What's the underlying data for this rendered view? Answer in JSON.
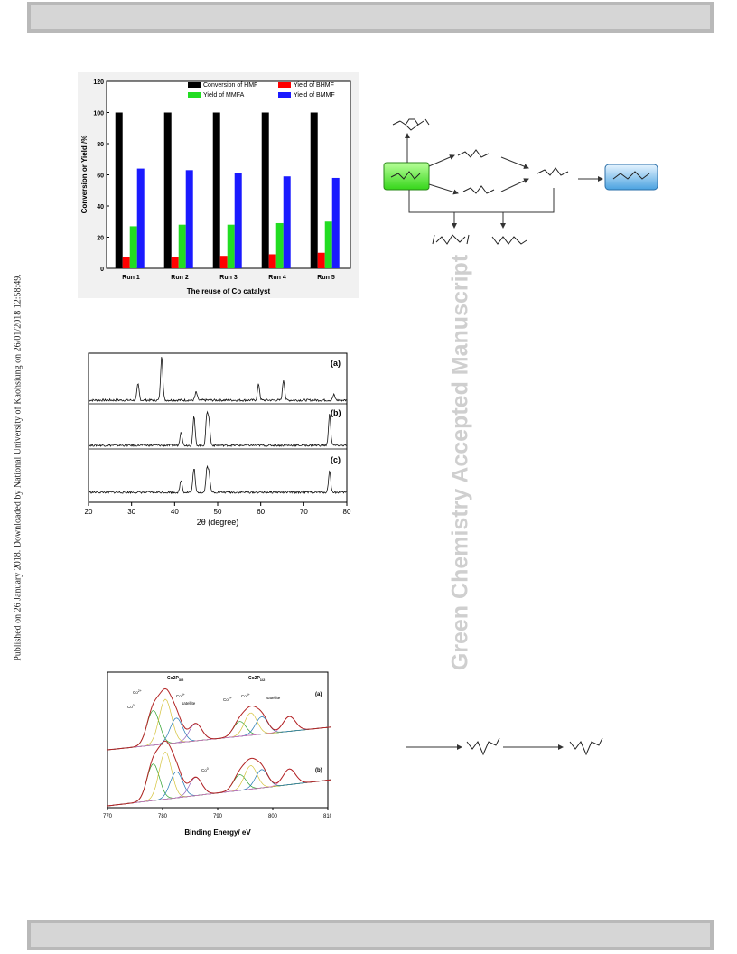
{
  "side_note": "Published on 26 January 2018. Downloaded by National University of Kaohsiung on 26/01/2018 12:58:49.",
  "watermark": "Green Chemistry Accepted Manuscript",
  "chart_data": [
    {
      "type": "bar",
      "xlabel": "The reuse of Co catalyst",
      "ylabel": "Conversion or Yield /%",
      "ylim": [
        0,
        120
      ],
      "yticks": [
        "0",
        "20",
        "40",
        "60",
        "80",
        "100",
        "120"
      ],
      "categories": [
        "Run 1",
        "Run 2",
        "Run 3",
        "Run 4",
        "Run 5"
      ],
      "legend": "top-right",
      "series": [
        {
          "name": "Conversion of HMF",
          "color": "#000000",
          "values": [
            100,
            100,
            100,
            100,
            100
          ]
        },
        {
          "name": "Yield of BHMF",
          "color": "#ff0000",
          "values": [
            7,
            7,
            8,
            9,
            10
          ]
        },
        {
          "name": "Yield of MMFA",
          "color": "#22dd22",
          "values": [
            27,
            28,
            28,
            29,
            30
          ]
        },
        {
          "name": "Yield of BMMF",
          "color": "#1a1aff",
          "values": [
            64,
            63,
            61,
            59,
            58
          ]
        }
      ]
    },
    {
      "type": "line",
      "xlabel": "2θ (degree)",
      "xlim": [
        20,
        80
      ],
      "xticks": [
        "20",
        "30",
        "40",
        "50",
        "60",
        "70",
        "80"
      ],
      "panels": [
        {
          "label": "(a)",
          "peaks": [
            [
              31.5,
              0.35
            ],
            [
              37.0,
              1.0
            ],
            [
              45.0,
              0.18
            ],
            [
              59.5,
              0.35
            ],
            [
              65.3,
              0.45
            ],
            [
              77.0,
              0.12
            ]
          ]
        },
        {
          "label": "(b)",
          "peaks": [
            [
              41.5,
              0.35
            ],
            [
              44.5,
              0.7
            ],
            [
              47.5,
              0.75
            ],
            [
              48.0,
              0.55
            ],
            [
              76.0,
              0.8
            ]
          ]
        },
        {
          "label": "(c)",
          "peaks": [
            [
              41.5,
              0.3
            ],
            [
              44.5,
              0.6
            ],
            [
              47.5,
              0.55
            ],
            [
              48.0,
              0.45
            ],
            [
              76.0,
              0.55
            ]
          ]
        }
      ]
    },
    {
      "type": "line",
      "xlabel": "Binding Energy/ eV",
      "xlim": [
        770,
        810
      ],
      "xticks": [
        "770",
        "780",
        "790",
        "800",
        "810"
      ],
      "panels": [
        {
          "label": "(a)"
        },
        {
          "label": "(b)"
        }
      ],
      "annotations": [
        "Co2P3/2",
        "Co2P1/2",
        "Co2+",
        "Co3+",
        "Co0",
        "satellite"
      ]
    }
  ]
}
